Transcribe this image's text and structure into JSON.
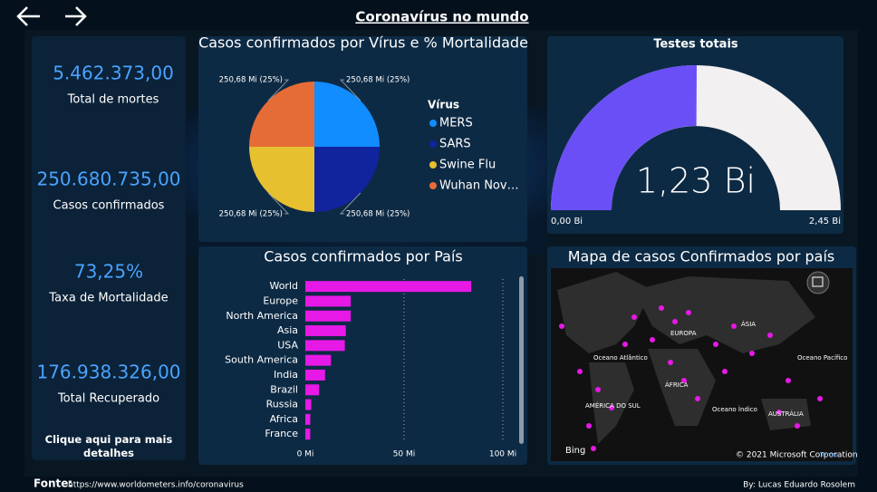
{
  "header": {
    "title": "Coronavírus no mundo"
  },
  "kpis": [
    {
      "value": "5.462.373,00",
      "label": "Total de mortes"
    },
    {
      "value": "250.680.735,00",
      "label": "Casos confirmados"
    },
    {
      "value": "73,25%",
      "label": "Taxa de Mortalidade"
    },
    {
      "value": "176.938.326,00",
      "label": "Total Recuperado"
    }
  ],
  "details_link": "Clique aqui para mais detalhes",
  "chart_data": [
    {
      "type": "pie",
      "title": "Casos confirmados por Vírus e % Mortalidade",
      "legend_title": "Vírus",
      "categories": [
        "MERS",
        "SARS",
        "Swine Flu",
        "Wuhan Nov…"
      ],
      "values": [
        250.68,
        250.68,
        250.68,
        250.68
      ],
      "value_labels": [
        "250,68 Mi (25%)",
        "250,68 Mi (25%)",
        "250,68 Mi (25%)",
        "250,68 Mi (25%)"
      ],
      "colors": [
        "#118dff",
        "#12239e",
        "#e6c02f",
        "#e66c37"
      ]
    },
    {
      "type": "gauge",
      "title": "Testes totais",
      "values": [
        1.23
      ],
      "value_labels": [
        "1,23 Bi"
      ],
      "ylim": [
        0,
        2.45
      ],
      "yticks": [
        {
          "value": 0,
          "label": "0,00 Bi"
        },
        {
          "value": 2.45,
          "label": "2,45 Bi"
        }
      ],
      "color": "#6b4ff6",
      "track_color": "#f2f0f0"
    },
    {
      "type": "hbar",
      "title": "Casos confirmados por País",
      "categories": [
        "World",
        "Europe",
        "North America",
        "Asia",
        "USA",
        "South America",
        "India",
        "Brazil",
        "Russia",
        "Africa",
        "France"
      ],
      "values": [
        84,
        23,
        23,
        20.5,
        20,
        13,
        10,
        7,
        3,
        2.5,
        2.5
      ],
      "xlim": [
        0,
        100
      ],
      "xticks": [
        {
          "value": 0,
          "label": "0 Mi"
        },
        {
          "value": 50,
          "label": "50 Mi"
        },
        {
          "value": 100,
          "label": "100 Mi"
        }
      ],
      "grid": true,
      "color": "#e619e6"
    }
  ],
  "map": {
    "title": "Mapa de casos Confirmados por país",
    "labels": [
      "EUROPA",
      "ÁSIA",
      "ÁFRICA",
      "AMÉRICA DO SUL",
      "AUSTRÁLIA",
      "Oceano Atlântico",
      "Oceano Índico",
      "Oceano Pacífico"
    ],
    "provider": "Bing",
    "copyright": "© 2021 Microsoft Corporation",
    "terms": "Terms"
  },
  "footer": {
    "source_label": "Fonte:",
    "source_url": "https://www.worldometers.info/coronavirus",
    "author": "By: Lucas Eduardo Rosolem"
  }
}
